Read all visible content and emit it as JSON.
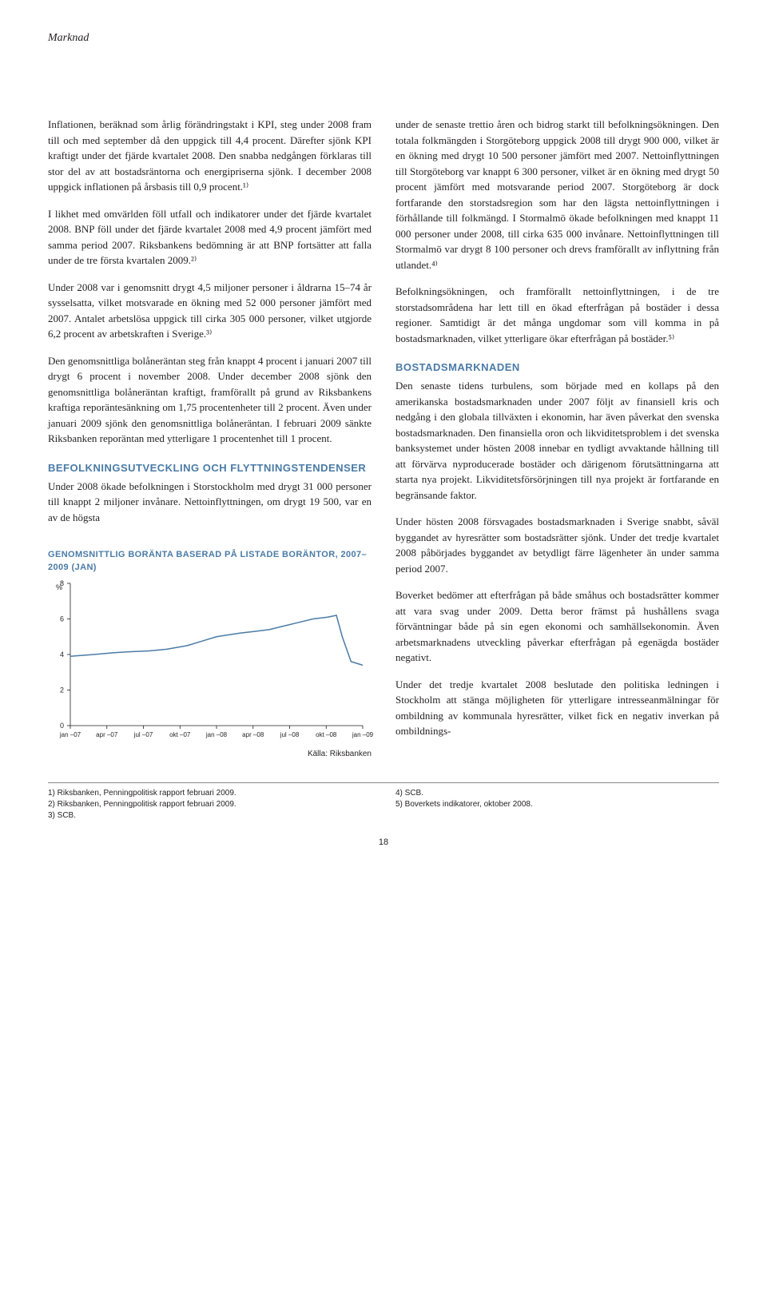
{
  "header": "Marknad",
  "page_number": "18",
  "left": {
    "p1": "Inflationen, beräknad som årlig förändringstakt i KPI, steg under 2008 fram till och med september då den uppgick till 4,4 procent. Därefter sjönk KPI kraftigt under det fjärde kvartalet 2008. Den snabba nedgången förklaras till stor del av att bostadsräntorna och energipriserna sjönk. I december 2008 uppgick inflationen på årsbasis till 0,9 procent.¹⁾",
    "p2": "I likhet med omvärlden föll utfall och indikatorer under det fjärde kvartalet 2008. BNP föll under det fjärde kvartalet 2008 med 4,9 procent jämfört med samma period 2007. Riksbankens bedömning är att BNP fortsätter att falla under de tre första kvartalen 2009.²⁾",
    "p3": "Under 2008 var i genomsnitt drygt 4,5 miljoner personer i åldrarna 15–74 år sysselsatta, vilket motsvarade en ökning med 52 000 personer jämfört med 2007. Antalet arbetslösa uppgick till cirka 305 000 personer, vilket utgjorde 6,2 procent av arbetskraften i Sverige.³⁾",
    "p4": "Den genomsnittliga bolåneräntan steg från knappt 4 procent i januari 2007 till drygt 6 procent i november 2008. Under december 2008 sjönk den genomsnittliga bolåneräntan kraftigt, framförallt på grund av Riksbankens kraftiga reporäntesänkning om 1,75 procentenheter till 2 procent. Även under januari 2009 sjönk den genomsnittliga bolåneräntan. I februari 2009 sänkte Riksbanken reporäntan med ytterligare 1 procentenhet till 1 procent.",
    "h1": "BEFOLKNINGSUTVECKLING OCH FLYTTNINGSTENDENSER",
    "p5": "Under 2008 ökade befolkningen i Storstockholm med drygt 31 000 personer till knappt 2 miljoner invånare. Nettoinflyttningen, om drygt 19 500, var en av de högsta"
  },
  "right": {
    "p1": "under de senaste trettio åren och bidrog starkt till befolkningsökningen. Den totala folkmängden i Storgöteborg uppgick 2008 till drygt 900 000, vilket är en ökning med drygt 10 500 personer jämfört med 2007. Nettoinflyttningen till Storgöteborg var knappt 6 300 personer, vilket är en ökning med drygt 50 procent jämfört med motsvarande period 2007. Storgöteborg är dock fortfarande den storstadsregion som har den lägsta nettoinflyttningen i förhållande till folkmängd. I Stormalmö ökade befolkningen med knappt 11 000 personer under 2008, till cirka 635 000 invånare. Nettoinflyttningen till Stormalmö var drygt 8 100 personer och drevs framförallt av inflyttning från utlandet.⁴⁾",
    "p2": "Befolkningsökningen, och framförallt nettoinflyttningen, i de tre storstadsområdena har lett till en ökad efterfrågan på bostäder i dessa regioner. Samtidigt är det många ungdomar som vill komma in på bostadsmarknaden, vilket ytterligare ökar efterfrågan på bostäder.⁵⁾",
    "h1": "BOSTADSMARKNADEN",
    "p3": "Den senaste tidens turbulens, som började med en kollaps på den amerikanska bostadsmarknaden under 2007 följt av finansiell kris och nedgång i den globala tillväxten i ekonomin, har även påverkat den svenska bostadsmarknaden. Den finansiella oron och likviditetsproblem i det svenska banksystemet under hösten 2008 innebar en tydligt avvaktande hållning till att förvärva nyproducerade bostäder och därigenom förutsättningarna att starta nya projekt. Likviditetsförsörjningen till nya projekt är fortfarande en begränsande faktor.",
    "p4": "Under hösten 2008 försvagades bostadsmarknaden i Sverige snabbt, såväl byggandet av hyresrätter som bostadsrätter sjönk. Under det tredje kvartalet 2008 påbörjades byggandet av betydligt färre lägenheter än under samma period 2007.",
    "p5": "Boverket bedömer att efterfrågan på både småhus och bostadsrätter kommer att vara svag under 2009. Detta beror främst på hushållens svaga förväntningar både på sin egen ekonomi och samhällsekonomin. Även arbetsmarknadens utveckling påverkar efterfrågan på egenägda bostäder negativt.",
    "p6": "Under det tredje kvartalet 2008 beslutade den politiska ledningen i Stockholm att stänga möjligheten för ytterligare intresseanmälningar för ombildning av kommunala hyresrätter, vilket fick en negativ inverkan på ombildnings-"
  },
  "chart": {
    "type": "line",
    "title": "GENOMSNITTLIG BORÄNTA BASERAD PÅ LISTADE BORÄNTOR, 2007–2009 (JAN)",
    "y_unit": "%",
    "ylim": [
      0,
      8
    ],
    "yticks": [
      0,
      2,
      4,
      6,
      8
    ],
    "xticks": [
      "jan –07",
      "apr –07",
      "jul –07",
      "okt –07",
      "jan –08",
      "apr –08",
      "jul –08",
      "okt –08",
      "jan –09"
    ],
    "line_color": "#4a7ba6",
    "line_width": 1.5,
    "grid_color": "#d0d0d0",
    "axis_color": "#231f20",
    "background_color": "#ffffff",
    "label_fontsize": 9,
    "source": "Källa: Riksbanken",
    "data": [
      {
        "x": 0.0,
        "y": 3.9
      },
      {
        "x": 0.08,
        "y": 4.0
      },
      {
        "x": 0.15,
        "y": 4.1
      },
      {
        "x": 0.2,
        "y": 4.15
      },
      {
        "x": 0.27,
        "y": 4.2
      },
      {
        "x": 0.33,
        "y": 4.3
      },
      {
        "x": 0.4,
        "y": 4.5
      },
      {
        "x": 0.46,
        "y": 4.8
      },
      {
        "x": 0.5,
        "y": 5.0
      },
      {
        "x": 0.54,
        "y": 5.1
      },
      {
        "x": 0.58,
        "y": 5.2
      },
      {
        "x": 0.63,
        "y": 5.3
      },
      {
        "x": 0.68,
        "y": 5.4
      },
      {
        "x": 0.73,
        "y": 5.6
      },
      {
        "x": 0.78,
        "y": 5.8
      },
      {
        "x": 0.83,
        "y": 6.0
      },
      {
        "x": 0.88,
        "y": 6.1
      },
      {
        "x": 0.91,
        "y": 6.2
      },
      {
        "x": 0.93,
        "y": 5.0
      },
      {
        "x": 0.96,
        "y": 3.6
      },
      {
        "x": 1.0,
        "y": 3.4
      }
    ]
  },
  "footnotes_left": [
    "1) Riksbanken, Penningpolitisk rapport februari 2009.",
    "2) Riksbanken, Penningpolitisk rapport februari 2009.",
    "3) SCB."
  ],
  "footnotes_right": [
    "4) SCB.",
    "5) Boverkets indikatorer, oktober 2008."
  ]
}
